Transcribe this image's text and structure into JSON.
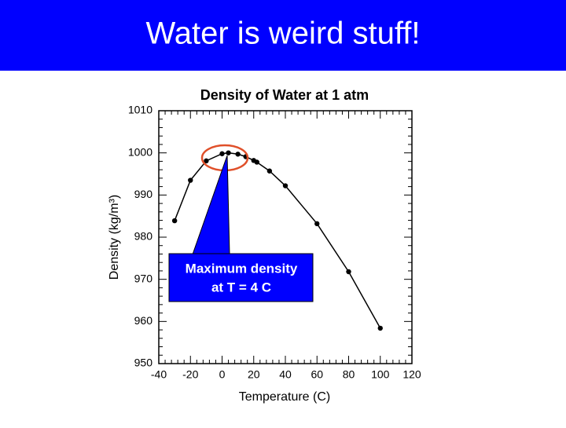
{
  "slide_title": "Water is weird stuff!",
  "chart_data": {
    "type": "line",
    "title": "Density of Water at 1 atm",
    "x_label": "Temperature (C)",
    "y_label": "Density (kg/m³)",
    "x": [
      -30,
      -20,
      -10,
      0,
      4,
      10,
      15,
      20,
      22,
      30,
      40,
      60,
      80,
      100
    ],
    "values": [
      983.9,
      993.5,
      998.1,
      999.8,
      1000.0,
      999.7,
      999.1,
      998.2,
      997.8,
      995.7,
      992.2,
      983.2,
      971.8,
      958.4
    ],
    "color": "#000000",
    "xlim": [
      -40,
      120
    ],
    "xticks": [
      -40,
      -20,
      0,
      20,
      40,
      60,
      80,
      100,
      120
    ],
    "ylim": [
      950,
      1010
    ],
    "yticks": [
      950,
      960,
      970,
      980,
      990,
      1000,
      1010
    ],
    "annotation": [
      "Maximum density",
      "at T = 4 C"
    ]
  }
}
